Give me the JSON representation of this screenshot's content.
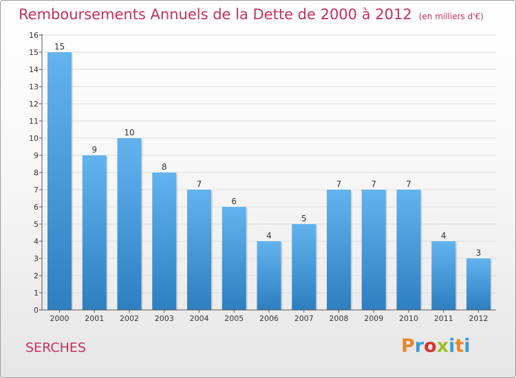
{
  "header": {
    "title": "Remboursements Annuels de la Dette de 2000 à 2012",
    "unit": "(en milliers d'€)"
  },
  "footer": {
    "place": "SERCHES",
    "logo_text": "Proxiti"
  },
  "colors": {
    "title": "#c4305a",
    "bar_top": "#62b3ee",
    "bar_bottom": "#2d7fc0",
    "logo_letters": [
      "#e8872a",
      "#3d9ad6",
      "#d5362f",
      "#9bbf2a",
      "#3d9ad6",
      "#e8872a",
      "#3d9ad6"
    ]
  },
  "chart_data": {
    "type": "bar",
    "title": "Remboursements Annuels de la Dette de 2000 à 2012",
    "subtitle": "(en milliers d'€)",
    "xlabel": "",
    "ylabel": "",
    "categories": [
      "2000",
      "2001",
      "2002",
      "2003",
      "2004",
      "2005",
      "2006",
      "2007",
      "2008",
      "2009",
      "2010",
      "2011",
      "2012"
    ],
    "values": [
      15,
      9,
      10,
      8,
      7,
      6,
      4,
      5,
      7,
      7,
      7,
      4,
      3
    ],
    "ylim": [
      0,
      16
    ],
    "yticks": [
      "0",
      "1",
      "2",
      "3",
      "4",
      "5",
      "6",
      "7",
      "8",
      "9",
      "10",
      "11",
      "12",
      "13",
      "14",
      "15",
      "16"
    ],
    "grid": true,
    "legend": "none"
  }
}
